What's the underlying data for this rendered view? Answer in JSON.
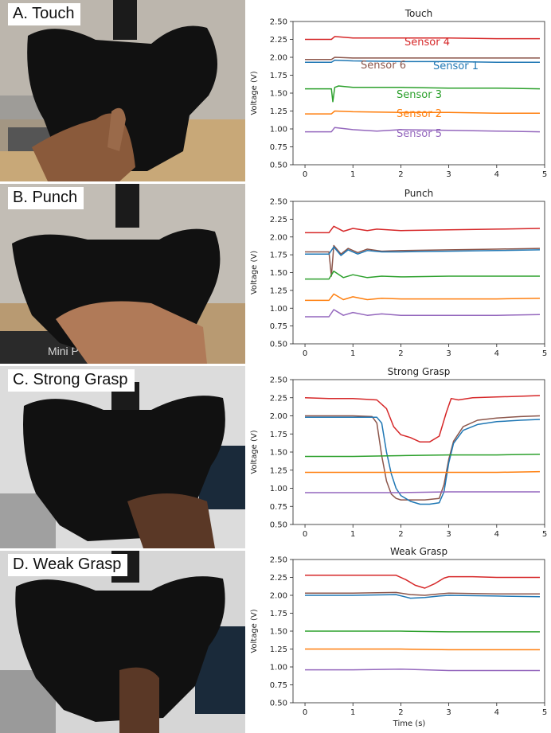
{
  "panels": [
    {
      "label": "A. Touch",
      "photo_caption": "Touch"
    },
    {
      "label": "B. Punch",
      "photo_caption": "Punch"
    },
    {
      "label": "C. Strong Grasp",
      "photo_caption": "Strong Grasp"
    },
    {
      "label": "D. Weak Grasp",
      "photo_caption": "Weak Grasp"
    }
  ],
  "photo_text": {
    "device": "Mini P"
  },
  "colors": {
    "Sensor 1": "#1f77b4",
    "Sensor 2": "#ff7f0e",
    "Sensor 3": "#2ca02c",
    "Sensor 4": "#d62728",
    "Sensor 5": "#9467bd",
    "Sensor 6": "#8c564b"
  },
  "chart_data": [
    {
      "type": "line",
      "title": "Touch",
      "xlabel": "",
      "ylabel": "Voltage (V)",
      "xlim": [
        -0.25,
        5.0
      ],
      "ylim": [
        0.5,
        2.5
      ],
      "xticks": [
        0,
        1,
        2,
        3,
        4,
        5
      ],
      "yticks": [
        "0.50",
        "0.75",
        "1.00",
        "1.25",
        "1.50",
        "1.75",
        "2.00",
        "2.25",
        "2.50"
      ],
      "annotations": [
        {
          "text": "Sensor 4",
          "color": "#d62728"
        },
        {
          "text": "Sensor 6",
          "color": "#8c564b"
        },
        {
          "text": "Sensor 1",
          "color": "#1f77b4"
        },
        {
          "text": "Sensor 3",
          "color": "#2ca02c"
        },
        {
          "text": "Sensor 2",
          "color": "#ff7f0e"
        },
        {
          "text": "Sensor 5",
          "color": "#9467bd"
        }
      ],
      "series": [
        {
          "name": "Sensor 4",
          "x": [
            0,
            0.55,
            0.62,
            1,
            2,
            3,
            4,
            4.9
          ],
          "y": [
            2.25,
            2.25,
            2.29,
            2.27,
            2.27,
            2.27,
            2.26,
            2.26
          ]
        },
        {
          "name": "Sensor 6",
          "x": [
            0,
            0.55,
            0.62,
            1,
            2,
            3,
            4,
            4.9
          ],
          "y": [
            1.97,
            1.97,
            2.0,
            1.99,
            1.99,
            1.99,
            1.99,
            1.99
          ]
        },
        {
          "name": "Sensor 1",
          "x": [
            0,
            0.55,
            0.62,
            1,
            2,
            3,
            4,
            4.9
          ],
          "y": [
            1.93,
            1.93,
            1.96,
            1.95,
            1.94,
            1.94,
            1.93,
            1.93
          ]
        },
        {
          "name": "Sensor 3",
          "x": [
            0,
            0.55,
            0.58,
            0.62,
            0.7,
            1,
            1.5,
            2,
            3,
            4,
            4.9
          ],
          "y": [
            1.56,
            1.56,
            1.38,
            1.58,
            1.6,
            1.58,
            1.58,
            1.58,
            1.57,
            1.57,
            1.56
          ]
        },
        {
          "name": "Sensor 2",
          "x": [
            0,
            0.55,
            0.62,
            1,
            2,
            3,
            4,
            4.9
          ],
          "y": [
            1.21,
            1.21,
            1.25,
            1.24,
            1.23,
            1.23,
            1.22,
            1.22
          ]
        },
        {
          "name": "Sensor 5",
          "x": [
            0,
            0.55,
            0.62,
            1,
            1.5,
            2,
            3,
            4,
            4.9
          ],
          "y": [
            0.96,
            0.96,
            1.02,
            0.99,
            0.97,
            0.99,
            0.98,
            0.97,
            0.96
          ]
        }
      ]
    },
    {
      "type": "line",
      "title": "Punch",
      "xlabel": "",
      "ylabel": "Voltage (V)",
      "xlim": [
        -0.25,
        5.0
      ],
      "ylim": [
        0.5,
        2.5
      ],
      "xticks": [
        0,
        1,
        2,
        3,
        4,
        5
      ],
      "yticks": [
        "0.50",
        "0.75",
        "1.00",
        "1.25",
        "1.50",
        "1.75",
        "2.00",
        "2.25",
        "2.50"
      ],
      "series": [
        {
          "name": "Sensor 4",
          "x": [
            0,
            0.5,
            0.6,
            0.8,
            1,
            1.3,
            1.5,
            2,
            3,
            4,
            4.9
          ],
          "y": [
            2.06,
            2.06,
            2.15,
            2.08,
            2.12,
            2.09,
            2.11,
            2.09,
            2.1,
            2.11,
            2.12
          ]
        },
        {
          "name": "Sensor 6",
          "x": [
            0,
            0.5,
            0.55,
            0.6,
            0.75,
            0.9,
            1.1,
            1.3,
            1.6,
            2,
            3,
            4,
            4.9
          ],
          "y": [
            1.79,
            1.79,
            1.45,
            1.88,
            1.76,
            1.84,
            1.78,
            1.83,
            1.8,
            1.81,
            1.82,
            1.83,
            1.84
          ]
        },
        {
          "name": "Sensor 1",
          "x": [
            0,
            0.5,
            0.6,
            0.75,
            0.9,
            1.1,
            1.3,
            1.6,
            2,
            3,
            4,
            4.9
          ],
          "y": [
            1.76,
            1.76,
            1.86,
            1.74,
            1.82,
            1.76,
            1.81,
            1.79,
            1.79,
            1.8,
            1.81,
            1.82
          ]
        },
        {
          "name": "Sensor 3",
          "x": [
            0,
            0.5,
            0.6,
            0.8,
            1,
            1.3,
            1.6,
            2,
            3,
            4,
            4.9
          ],
          "y": [
            1.41,
            1.41,
            1.52,
            1.43,
            1.47,
            1.43,
            1.45,
            1.44,
            1.45,
            1.45,
            1.45
          ]
        },
        {
          "name": "Sensor 2",
          "x": [
            0,
            0.5,
            0.6,
            0.8,
            1,
            1.3,
            1.6,
            2,
            3,
            4,
            4.9
          ],
          "y": [
            1.11,
            1.11,
            1.2,
            1.12,
            1.16,
            1.12,
            1.14,
            1.13,
            1.13,
            1.13,
            1.14
          ]
        },
        {
          "name": "Sensor 5",
          "x": [
            0,
            0.5,
            0.6,
            0.8,
            1,
            1.3,
            1.6,
            2,
            3,
            4,
            4.9
          ],
          "y": [
            0.88,
            0.88,
            0.98,
            0.9,
            0.94,
            0.9,
            0.92,
            0.9,
            0.9,
            0.9,
            0.91
          ]
        }
      ]
    },
    {
      "type": "line",
      "title": "Strong Grasp",
      "xlabel": "",
      "ylabel": "Voltage (V)",
      "xlim": [
        -0.25,
        5.0
      ],
      "ylim": [
        0.5,
        2.5
      ],
      "xticks": [
        0,
        1,
        2,
        3,
        4,
        5
      ],
      "yticks": [
        "0.50",
        "0.75",
        "1.00",
        "1.25",
        "1.50",
        "1.75",
        "2.00",
        "2.25",
        "2.50"
      ],
      "series": [
        {
          "name": "Sensor 4",
          "x": [
            0,
            0.5,
            1,
            1.5,
            1.7,
            1.85,
            2,
            2.2,
            2.4,
            2.6,
            2.8,
            2.95,
            3.05,
            3.2,
            3.5,
            4,
            4.5,
            4.9
          ],
          "y": [
            2.25,
            2.24,
            2.24,
            2.22,
            2.1,
            1.85,
            1.74,
            1.7,
            1.64,
            1.64,
            1.72,
            2.05,
            2.24,
            2.22,
            2.25,
            2.26,
            2.27,
            2.28
          ]
        },
        {
          "name": "Sensor 6",
          "x": [
            0,
            0.5,
            1,
            1.4,
            1.5,
            1.6,
            1.7,
            1.8,
            1.9,
            2.0,
            2.2,
            2.5,
            2.8,
            2.9,
            3.0,
            3.1,
            3.3,
            3.6,
            4,
            4.5,
            4.9
          ],
          "y": [
            2.0,
            2.0,
            2.0,
            1.99,
            1.9,
            1.45,
            1.1,
            0.92,
            0.86,
            0.84,
            0.84,
            0.84,
            0.86,
            1.05,
            1.4,
            1.65,
            1.85,
            1.94,
            1.97,
            1.99,
            2.0
          ]
        },
        {
          "name": "Sensor 1",
          "x": [
            0,
            0.5,
            1,
            1.5,
            1.6,
            1.7,
            1.8,
            1.9,
            2.0,
            2.2,
            2.4,
            2.6,
            2.8,
            2.9,
            3.0,
            3.1,
            3.3,
            3.6,
            4,
            4.5,
            4.9
          ],
          "y": [
            1.98,
            1.98,
            1.98,
            1.98,
            1.9,
            1.5,
            1.2,
            1.0,
            0.9,
            0.82,
            0.78,
            0.78,
            0.8,
            0.95,
            1.35,
            1.62,
            1.8,
            1.88,
            1.92,
            1.94,
            1.95
          ]
        },
        {
          "name": "Sensor 3",
          "x": [
            0,
            1,
            2,
            3,
            4,
            4.9
          ],
          "y": [
            1.44,
            1.44,
            1.45,
            1.46,
            1.46,
            1.47
          ]
        },
        {
          "name": "Sensor 2",
          "x": [
            0,
            1,
            2,
            3,
            4,
            4.9
          ],
          "y": [
            1.22,
            1.22,
            1.22,
            1.22,
            1.22,
            1.23
          ]
        },
        {
          "name": "Sensor 5",
          "x": [
            0,
            1,
            2,
            3,
            4,
            4.9
          ],
          "y": [
            0.94,
            0.94,
            0.94,
            0.95,
            0.95,
            0.95
          ]
        }
      ]
    },
    {
      "type": "line",
      "title": "Weak Grasp",
      "xlabel": "Time (s)",
      "ylabel": "Voltage (V)",
      "xlim": [
        -0.25,
        5.0
      ],
      "ylim": [
        0.5,
        2.5
      ],
      "xticks": [
        0,
        1,
        2,
        3,
        4,
        5
      ],
      "yticks": [
        "0.50",
        "0.75",
        "1.00",
        "1.25",
        "1.50",
        "1.75",
        "2.00",
        "2.25",
        "2.50"
      ],
      "series": [
        {
          "name": "Sensor 4",
          "x": [
            0,
            0.5,
            1,
            1.5,
            1.9,
            2.1,
            2.3,
            2.5,
            2.7,
            2.9,
            3.0,
            3.5,
            4,
            4.5,
            4.9
          ],
          "y": [
            2.28,
            2.28,
            2.28,
            2.28,
            2.28,
            2.22,
            2.14,
            2.1,
            2.16,
            2.24,
            2.26,
            2.26,
            2.25,
            2.25,
            2.25
          ]
        },
        {
          "name": "Sensor 6",
          "x": [
            0,
            1,
            1.9,
            2.2,
            2.5,
            2.8,
            3,
            4,
            4.9
          ],
          "y": [
            2.03,
            2.03,
            2.04,
            2.01,
            2.0,
            2.02,
            2.03,
            2.02,
            2.02
          ]
        },
        {
          "name": "Sensor 1",
          "x": [
            0,
            1,
            1.9,
            2.2,
            2.5,
            2.8,
            3,
            4,
            4.9
          ],
          "y": [
            2.0,
            2.0,
            2.01,
            1.96,
            1.97,
            1.99,
            2.0,
            1.99,
            1.98
          ]
        },
        {
          "name": "Sensor 3",
          "x": [
            0,
            1,
            2,
            3,
            4,
            4.9
          ],
          "y": [
            1.5,
            1.5,
            1.5,
            1.49,
            1.49,
            1.49
          ]
        },
        {
          "name": "Sensor 2",
          "x": [
            0,
            1,
            2,
            3,
            4,
            4.9
          ],
          "y": [
            1.25,
            1.25,
            1.25,
            1.24,
            1.24,
            1.24
          ]
        },
        {
          "name": "Sensor 5",
          "x": [
            0,
            1,
            2,
            3,
            4,
            4.9
          ],
          "y": [
            0.96,
            0.96,
            0.97,
            0.95,
            0.95,
            0.95
          ]
        }
      ]
    }
  ]
}
